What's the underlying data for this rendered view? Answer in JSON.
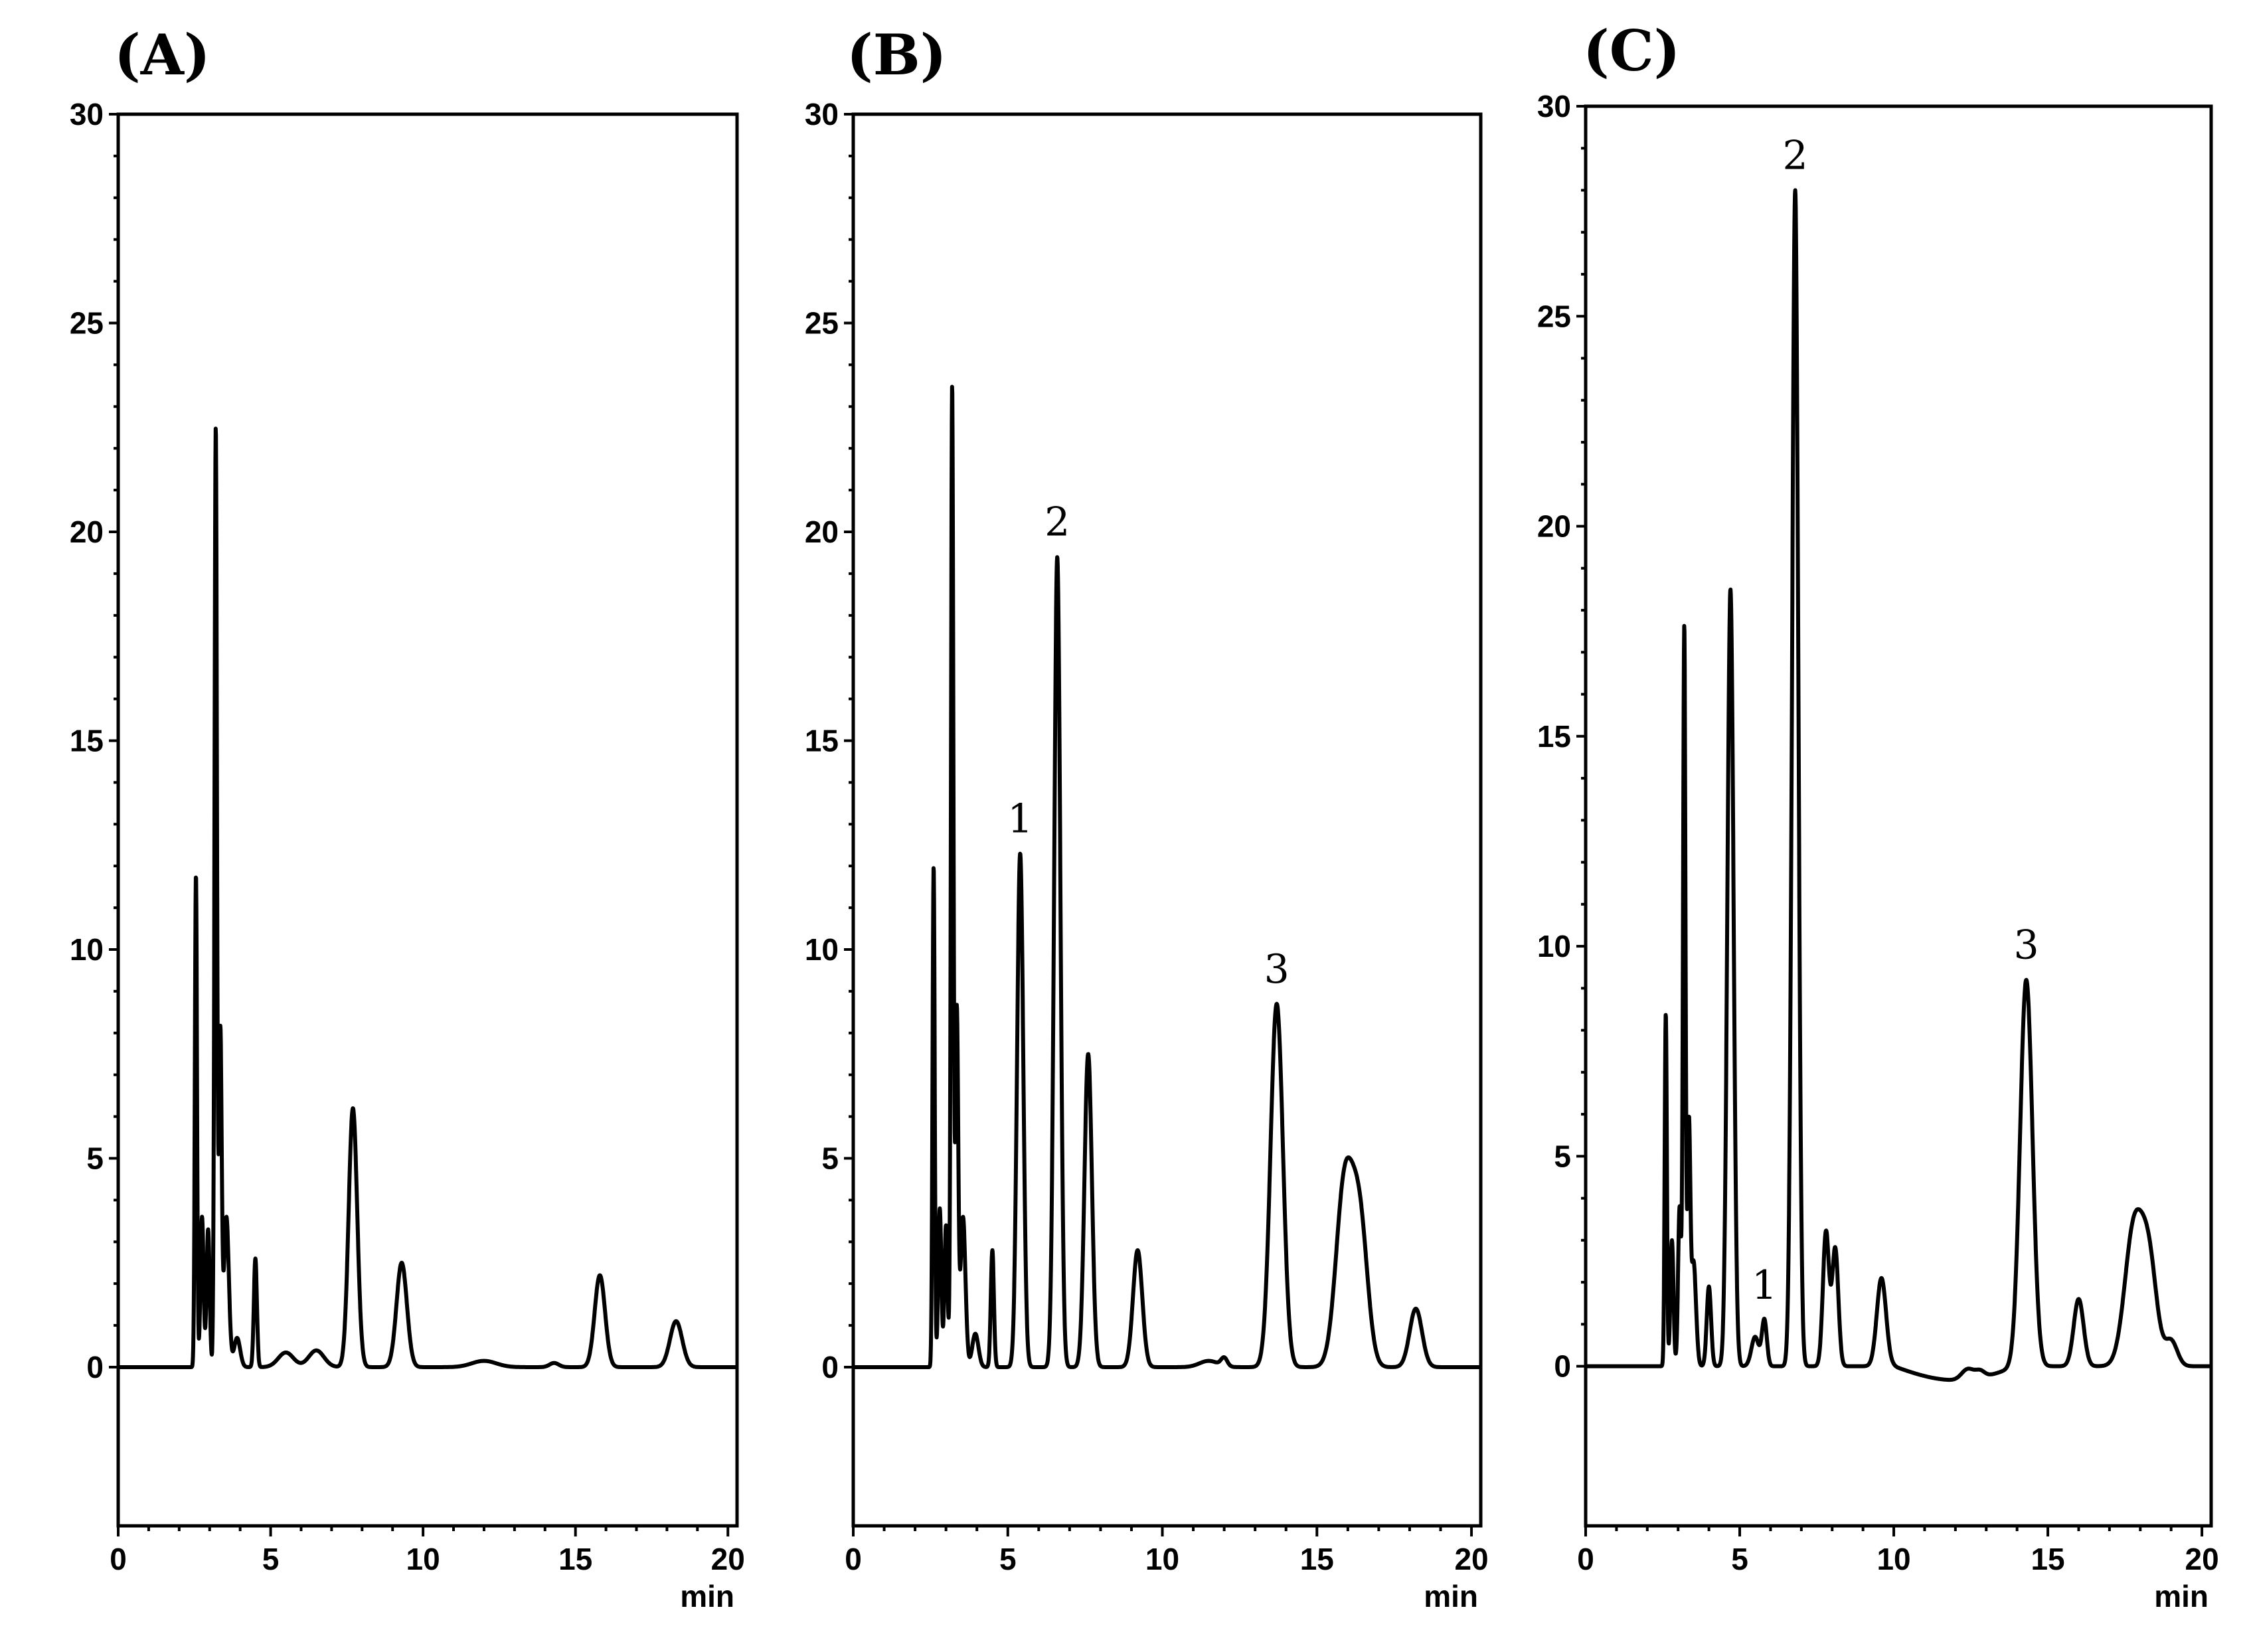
{
  "chart_data": [
    {
      "type": "line",
      "panel_label": "(A)",
      "xlabel": "min",
      "ylabel": "",
      "xlim": [
        0,
        20.3
      ],
      "ylim": [
        -3.8,
        30
      ],
      "x_ticks": [
        0,
        5,
        10,
        15,
        20
      ],
      "y_ticks": [
        0,
        5,
        10,
        15,
        20,
        25,
        30
      ],
      "series": [
        {
          "baseline": 0,
          "peaks": [
            {
              "rt": 2.55,
              "height": 11.8,
              "width": 0.035
            },
            {
              "rt": 2.75,
              "height": 3.6,
              "width": 0.05
            },
            {
              "rt": 2.95,
              "height": 3.3,
              "width": 0.05
            },
            {
              "rt": 3.2,
              "height": 22.5,
              "width": 0.04
            },
            {
              "rt": 3.35,
              "height": 8.0,
              "width": 0.045
            },
            {
              "rt": 3.55,
              "height": 3.6,
              "width": 0.08
            },
            {
              "rt": 3.9,
              "height": 0.7,
              "width": 0.1
            },
            {
              "rt": 4.5,
              "height": 2.6,
              "width": 0.05
            },
            {
              "rt": 5.5,
              "height": 0.35,
              "width": 0.25
            },
            {
              "rt": 6.5,
              "height": 0.4,
              "width": 0.25
            },
            {
              "rt": 7.7,
              "height": 6.2,
              "width": 0.14
            },
            {
              "rt": 9.3,
              "height": 2.5,
              "width": 0.17
            },
            {
              "rt": 12.0,
              "height": 0.15,
              "width": 0.4
            },
            {
              "rt": 14.3,
              "height": 0.1,
              "width": 0.15
            },
            {
              "rt": 15.8,
              "height": 2.2,
              "width": 0.17
            },
            {
              "rt": 18.3,
              "height": 1.1,
              "width": 0.2
            }
          ]
        }
      ],
      "annotations": []
    },
    {
      "type": "line",
      "panel_label": "(B)",
      "xlabel": "min",
      "ylabel": "",
      "xlim": [
        0,
        20.3
      ],
      "ylim": [
        -3.8,
        30
      ],
      "x_ticks": [
        0,
        5,
        10,
        15,
        20
      ],
      "y_ticks": [
        0,
        5,
        10,
        15,
        20,
        25,
        30
      ],
      "series": [
        {
          "baseline": 0,
          "peaks": [
            {
              "rt": 2.6,
              "height": 12.0,
              "width": 0.035
            },
            {
              "rt": 2.8,
              "height": 3.8,
              "width": 0.05
            },
            {
              "rt": 3.0,
              "height": 3.4,
              "width": 0.05
            },
            {
              "rt": 3.2,
              "height": 23.5,
              "width": 0.04
            },
            {
              "rt": 3.35,
              "height": 8.5,
              "width": 0.045
            },
            {
              "rt": 3.55,
              "height": 3.6,
              "width": 0.08
            },
            {
              "rt": 3.95,
              "height": 0.8,
              "width": 0.1
            },
            {
              "rt": 4.5,
              "height": 2.8,
              "width": 0.05
            },
            {
              "rt": 5.4,
              "height": 12.3,
              "width": 0.1
            },
            {
              "rt": 6.6,
              "height": 19.4,
              "width": 0.1
            },
            {
              "rt": 7.6,
              "height": 7.5,
              "width": 0.12
            },
            {
              "rt": 9.2,
              "height": 2.8,
              "width": 0.15
            },
            {
              "rt": 11.5,
              "height": 0.15,
              "width": 0.3
            },
            {
              "rt": 12.0,
              "height": 0.2,
              "width": 0.1
            },
            {
              "rt": 13.7,
              "height": 8.7,
              "width": 0.2
            },
            {
              "rt": 15.9,
              "height": 4.4,
              "width": 0.28
            },
            {
              "rt": 16.4,
              "height": 3.2,
              "width": 0.25
            },
            {
              "rt": 18.2,
              "height": 1.4,
              "width": 0.2
            }
          ]
        }
      ],
      "annotations": [
        {
          "text": "1",
          "x": 5.4,
          "y": 12.3
        },
        {
          "text": "2",
          "x": 6.6,
          "y": 19.4
        },
        {
          "text": "3",
          "x": 13.7,
          "y": 8.7
        }
      ]
    },
    {
      "type": "line",
      "panel_label": "(C)",
      "xlabel": "min",
      "ylabel": "",
      "xlim": [
        0,
        20.3
      ],
      "ylim": [
        -3.8,
        30
      ],
      "x_ticks": [
        0,
        5,
        10,
        15,
        20
      ],
      "y_ticks": [
        0,
        5,
        10,
        15,
        20,
        25,
        30
      ],
      "series": [
        {
          "baseline": 0,
          "peaks": [
            {
              "rt": 2.6,
              "height": 8.4,
              "width": 0.035
            },
            {
              "rt": 2.8,
              "height": 3.0,
              "width": 0.05
            },
            {
              "rt": 3.05,
              "height": 3.8,
              "width": 0.05
            },
            {
              "rt": 3.2,
              "height": 17.6,
              "width": 0.04
            },
            {
              "rt": 3.35,
              "height": 5.5,
              "width": 0.045
            },
            {
              "rt": 3.5,
              "height": 2.5,
              "width": 0.08
            },
            {
              "rt": 4.0,
              "height": 1.9,
              "width": 0.07
            },
            {
              "rt": 4.7,
              "height": 18.5,
              "width": 0.1
            },
            {
              "rt": 5.5,
              "height": 0.7,
              "width": 0.12
            },
            {
              "rt": 5.8,
              "height": 1.1,
              "width": 0.08
            },
            {
              "rt": 6.8,
              "height": 28.0,
              "width": 0.1
            },
            {
              "rt": 7.8,
              "height": 3.2,
              "width": 0.1
            },
            {
              "rt": 8.1,
              "height": 2.8,
              "width": 0.1
            },
            {
              "rt": 9.6,
              "height": 2.1,
              "width": 0.15
            },
            {
              "rt": 12.4,
              "height": 0.25,
              "width": 0.2
            },
            {
              "rt": 12.8,
              "height": 0.15,
              "width": 0.15
            },
            {
              "rt": 14.3,
              "height": 9.2,
              "width": 0.2
            },
            {
              "rt": 16.0,
              "height": 1.6,
              "width": 0.16
            },
            {
              "rt": 17.8,
              "height": 3.3,
              "width": 0.3
            },
            {
              "rt": 18.3,
              "height": 2.2,
              "width": 0.25
            },
            {
              "rt": 19.0,
              "height": 0.6,
              "width": 0.2
            }
          ]
        }
      ],
      "annotations": [
        {
          "text": "1",
          "x": 5.8,
          "y": 1.1
        },
        {
          "text": "2",
          "x": 6.8,
          "y": 28.0
        },
        {
          "text": "3",
          "x": 14.3,
          "y": 9.2
        }
      ]
    }
  ]
}
